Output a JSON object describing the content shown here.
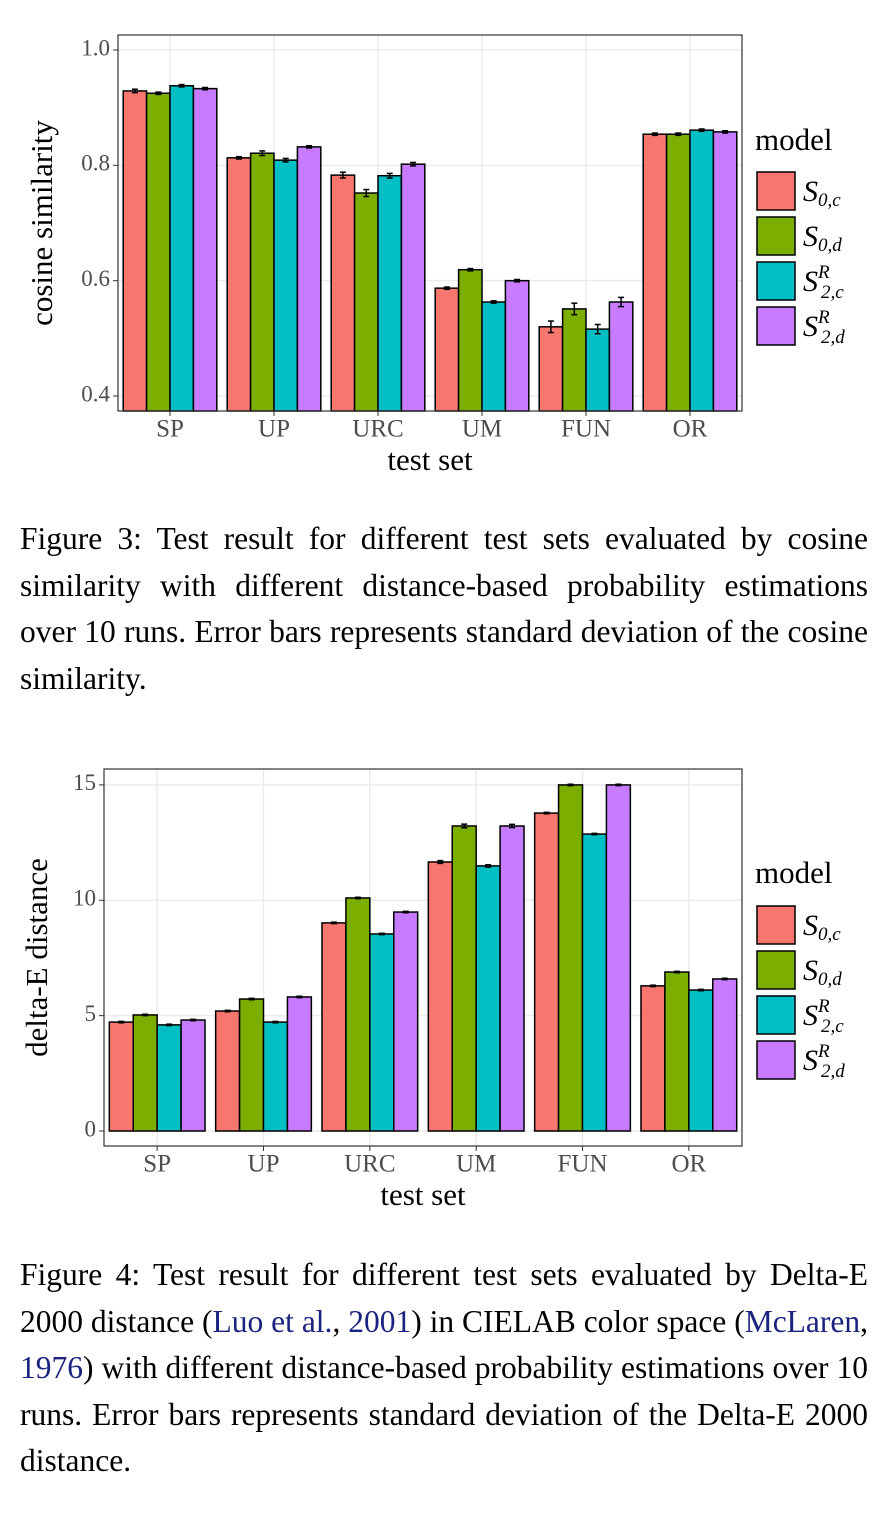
{
  "chart_data": [
    {
      "type": "bar",
      "x_label": "test set",
      "y_label": "cosine similarity",
      "legend_title": "model",
      "categories": [
        "SP",
        "UP",
        "URC",
        "UM",
        "FUN",
        "OR"
      ],
      "ylim": [
        0.374,
        1.026
      ],
      "yticks": [
        {
          "value": 1,
          "label": "1.0"
        },
        0.8,
        0.6,
        0.4
      ],
      "grid": true,
      "legend": "right",
      "series": [
        {
          "name": {
            "base": "S",
            "sub": "0,c"
          },
          "color": "#F8766D",
          "values": [
            0.929,
            0.813,
            0.783,
            0.587,
            0.52,
            0.854
          ],
          "errors": [
            0.003,
            0.002,
            0.005,
            0.002,
            0.01,
            0.002
          ]
        },
        {
          "name": {
            "base": "S",
            "sub": "0,d"
          },
          "color": "#7CAE00",
          "values": [
            0.925,
            0.821,
            0.752,
            0.619,
            0.551,
            0.854
          ],
          "errors": [
            0.002,
            0.004,
            0.006,
            0.002,
            0.01,
            0.002
          ]
        },
        {
          "name": {
            "base": "S",
            "sup": "R",
            "sub": "2,c"
          },
          "color": "#00BFC4",
          "values": [
            0.938,
            0.809,
            0.782,
            0.563,
            0.516,
            0.861
          ],
          "errors": [
            0.002,
            0.003,
            0.004,
            0.002,
            0.008,
            0.002
          ]
        },
        {
          "name": {
            "base": "S",
            "sup": "R",
            "sub": "2,d"
          },
          "color": "#C77CFF",
          "values": [
            0.933,
            0.832,
            0.802,
            0.6,
            0.563,
            0.858
          ],
          "errors": [
            0.002,
            0.002,
            0.003,
            0.002,
            0.008,
            0.002
          ]
        }
      ]
    },
    {
      "type": "bar",
      "x_label": "test set",
      "y_label": "delta-E distance",
      "legend_title": "model",
      "categories": [
        "SP",
        "UP",
        "URC",
        "UM",
        "FUN",
        "OR"
      ],
      "ylim": [
        -0.65,
        15.69
      ],
      "yticks": [
        15,
        10,
        5,
        0
      ],
      "grid": true,
      "legend": "right",
      "series": [
        {
          "name": {
            "base": "S",
            "sub": "0,c"
          },
          "color": "#F8766D",
          "values": [
            4.72,
            5.2,
            9.02,
            11.66,
            13.78,
            6.29
          ],
          "errors": [
            0.03,
            0.03,
            0.03,
            0.06,
            0.03,
            0.03
          ]
        },
        {
          "name": {
            "base": "S",
            "sub": "0,d"
          },
          "color": "#7CAE00",
          "values": [
            5.03,
            5.72,
            10.1,
            13.22,
            15.0,
            6.89
          ],
          "errors": [
            0.03,
            0.03,
            0.03,
            0.08,
            0.03,
            0.03
          ]
        },
        {
          "name": {
            "base": "S",
            "sup": "R",
            "sub": "2,c"
          },
          "color": "#00BFC4",
          "values": [
            4.6,
            4.72,
            8.54,
            11.49,
            12.87,
            6.11
          ],
          "errors": [
            0.03,
            0.03,
            0.03,
            0.05,
            0.03,
            0.03
          ]
        },
        {
          "name": {
            "base": "S",
            "sup": "R",
            "sub": "2,d"
          },
          "color": "#C77CFF",
          "values": [
            4.81,
            5.81,
            9.49,
            13.22,
            15.0,
            6.59
          ],
          "errors": [
            0.03,
            0.03,
            0.03,
            0.07,
            0.03,
            0.03
          ]
        }
      ]
    }
  ],
  "captions": [
    [
      {
        "text": "Figure 3:  Test result for different test sets evaluated by cosine similarity with different distance-based probability estimations over 10 runs.  Error bars represents standard deviation of the cosine similarity."
      }
    ],
    [
      {
        "text": "Figure 4:  Test result for different test sets evaluated by Delta-E 2000 distance ("
      },
      {
        "text": "Luo et al.",
        "link": true
      },
      {
        "text": ", "
      },
      {
        "text": "2001",
        "link": true
      },
      {
        "text": ") in CIELAB color space ("
      },
      {
        "text": "McLaren",
        "link": true
      },
      {
        "text": ", "
      },
      {
        "text": "1976",
        "link": true
      },
      {
        "text": ") with different distance-based probability estimations over 10 runs.  Error bars represents standard deviation of the Delta-E 2000 distance."
      }
    ]
  ]
}
